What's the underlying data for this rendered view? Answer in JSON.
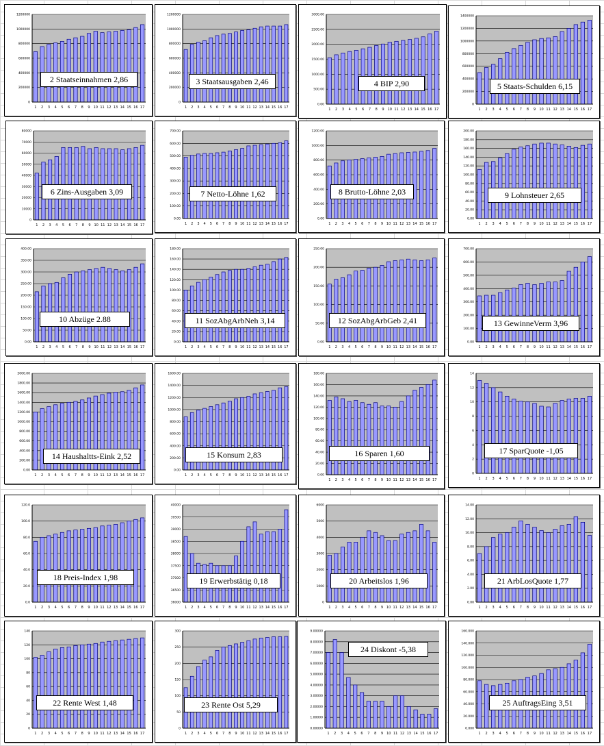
{
  "colors": {
    "plot_area": "#c0c0c0",
    "bar_fill": "#9999ff",
    "bar_stroke": "#000080",
    "grid": "#000000"
  },
  "chart_data": [
    {
      "type": "bar",
      "title": "2  Staatseinnahmen 2,86",
      "categories": [
        "1",
        "2",
        "3",
        "4",
        "5",
        "6",
        "7",
        "8",
        "9",
        "10",
        "11",
        "12",
        "13",
        "14",
        "15",
        "16",
        "17"
      ],
      "values": [
        690000,
        760000,
        790000,
        810000,
        830000,
        860000,
        880000,
        900000,
        940000,
        970000,
        950000,
        960000,
        970000,
        980000,
        990000,
        1020000,
        1060000
      ],
      "ylim": [
        0,
        1200000
      ],
      "yticks": [
        "0",
        "200000",
        "400000",
        "600000",
        "800000",
        "1000000",
        "1200000"
      ]
    },
    {
      "type": "bar",
      "title": "3 Staatsausgaben 2,46",
      "categories": [
        "1",
        "2",
        "3",
        "4",
        "5",
        "6",
        "7",
        "8",
        "9",
        "10",
        "11",
        "12",
        "13",
        "14",
        "15",
        "16",
        "17"
      ],
      "values": [
        720000,
        790000,
        820000,
        840000,
        880000,
        910000,
        930000,
        940000,
        960000,
        980000,
        990000,
        1010000,
        1030000,
        1040000,
        1040000,
        1040000,
        1060000
      ],
      "ylim": [
        0,
        1200000
      ],
      "yticks": [
        "0",
        "200000",
        "400000",
        "600000",
        "800000",
        "1000000",
        "1200000"
      ]
    },
    {
      "type": "bar",
      "title": "4  BIP 2,90",
      "categories": [
        "1",
        "2",
        "3",
        "4",
        "5",
        "6",
        "7",
        "8",
        "9",
        "10",
        "11",
        "12",
        "13",
        "14",
        "15",
        "16",
        "17"
      ],
      "values": [
        1550,
        1650,
        1710,
        1760,
        1800,
        1850,
        1900,
        1960,
        2010,
        2070,
        2100,
        2130,
        2160,
        2200,
        2250,
        2350,
        2440
      ],
      "ylim": [
        0,
        3000
      ],
      "yticks": [
        "0.00",
        "500.00",
        "1000.00",
        "1500.00",
        "2000.00",
        "2500.00",
        "3000.00"
      ]
    },
    {
      "type": "bar",
      "title": "5  Staats-Schulden 6,15",
      "categories": [
        "1",
        "2",
        "3",
        "4",
        "5",
        "6",
        "7",
        "8",
        "9",
        "10",
        "11",
        "12",
        "13",
        "14",
        "15",
        "16",
        "17"
      ],
      "values": [
        500000,
        580000,
        630000,
        720000,
        820000,
        880000,
        930000,
        980000,
        1020000,
        1040000,
        1050000,
        1070000,
        1150000,
        1200000,
        1260000,
        1300000,
        1330000
      ],
      "ylim": [
        0,
        1400000
      ],
      "yticks": [
        "0",
        "200000",
        "400000",
        "600000",
        "800000",
        "1000000",
        "1200000",
        "1400000"
      ]
    },
    {
      "type": "bar",
      "title": "6 Zins-Ausgaben 3,09",
      "categories": [
        "1",
        "2",
        "3",
        "4",
        "5",
        "6",
        "7",
        "8",
        "9",
        "10",
        "11",
        "12",
        "13",
        "14",
        "15",
        "16",
        "17"
      ],
      "values": [
        42000,
        52000,
        54000,
        57000,
        65000,
        65000,
        65000,
        66000,
        64000,
        65000,
        64000,
        64000,
        64000,
        63000,
        64000,
        65000,
        67000
      ],
      "ylim": [
        0,
        80000
      ],
      "yticks": [
        "0",
        "10000",
        "20000",
        "30000",
        "40000",
        "50000",
        "60000",
        "70000",
        "80000"
      ]
    },
    {
      "type": "bar",
      "title": "7 Netto-Löhne 1,62",
      "categories": [
        "1",
        "2",
        "3",
        "4",
        "5",
        "6",
        "7",
        "8",
        "9",
        "10",
        "11",
        "12",
        "13",
        "14",
        "15",
        "16",
        "17"
      ],
      "values": [
        490,
        505,
        515,
        520,
        520,
        525,
        530,
        540,
        550,
        560,
        580,
        585,
        590,
        595,
        600,
        605,
        620
      ],
      "ylim": [
        0,
        700
      ],
      "yticks": [
        "0.00",
        "100.00",
        "200.00",
        "300.00",
        "400.00",
        "500.00",
        "600.00",
        "700.00"
      ]
    },
    {
      "type": "bar",
      "title": "8  Brutto-Löhne 2,03",
      "categories": [
        "1",
        "2",
        "3",
        "4",
        "5",
        "6",
        "7",
        "8",
        "9",
        "10",
        "11",
        "12",
        "13",
        "14",
        "15",
        "16",
        "17"
      ],
      "values": [
        720,
        760,
        790,
        800,
        810,
        820,
        830,
        840,
        850,
        880,
        890,
        900,
        905,
        910,
        920,
        930,
        960
      ],
      "ylim": [
        0,
        1200
      ],
      "yticks": [
        "0.00",
        "200.00",
        "400.00",
        "600.00",
        "800.00",
        "1000.00",
        "1200.00"
      ]
    },
    {
      "type": "bar",
      "title": "9  Lohnsteuer 2,65",
      "categories": [
        "1",
        "2",
        "3",
        "4",
        "5",
        "6",
        "7",
        "8",
        "9",
        "10",
        "11",
        "12",
        "13",
        "14",
        "15",
        "16",
        "17"
      ],
      "values": [
        112,
        128,
        130,
        138,
        148,
        158,
        163,
        166,
        170,
        172,
        172,
        170,
        168,
        165,
        162,
        167,
        170
      ],
      "ylim": [
        0,
        200
      ],
      "yticks": [
        "0.00",
        "20.00",
        "40.00",
        "60.00",
        "80.00",
        "100.00",
        "120.00",
        "140.00",
        "160.00",
        "180.00",
        "200.00"
      ]
    },
    {
      "type": "bar",
      "title": "10  Abzüge   2.88",
      "categories": [
        "1",
        "2",
        "3",
        "4",
        "5",
        "6",
        "7",
        "8",
        "9",
        "10",
        "11",
        "12",
        "13",
        "14",
        "15",
        "16",
        "17"
      ],
      "values": [
        215,
        240,
        250,
        255,
        275,
        290,
        300,
        305,
        310,
        315,
        320,
        315,
        310,
        305,
        310,
        320,
        335
      ],
      "ylim": [
        0,
        400
      ],
      "yticks": [
        "0.00",
        "50.00",
        "100.00",
        "150.00",
        "200.00",
        "250.00",
        "300.00",
        "350.00",
        "400.00"
      ]
    },
    {
      "type": "bar",
      "title": "11 SozAbgArbNeh 3,14",
      "categories": [
        "1",
        "2",
        "3",
        "4",
        "5",
        "6",
        "7",
        "8",
        "9",
        "10",
        "11",
        "12",
        "13",
        "14",
        "15",
        "16",
        "17"
      ],
      "values": [
        100,
        108,
        115,
        120,
        125,
        130,
        135,
        138,
        140,
        140,
        142,
        145,
        148,
        150,
        155,
        160,
        163
      ],
      "ylim": [
        0,
        180
      ],
      "yticks": [
        "0.00",
        "20.00",
        "40.00",
        "60.00",
        "80.00",
        "100.00",
        "120.00",
        "140.00",
        "160.00",
        "180.00"
      ]
    },
    {
      "type": "bar",
      "title": "12 SozAbgArbGeb 2,41",
      "categories": [
        "1",
        "2",
        "3",
        "4",
        "5",
        "6",
        "7",
        "8",
        "9",
        "10",
        "11",
        "12",
        "13",
        "14",
        "15",
        "16",
        "17"
      ],
      "values": [
        155,
        168,
        172,
        180,
        190,
        192,
        198,
        200,
        205,
        215,
        218,
        220,
        222,
        220,
        218,
        220,
        225
      ],
      "ylim": [
        0,
        250
      ],
      "yticks": [
        "0.00",
        "50.00",
        "100.00",
        "150.00",
        "200.00",
        "250.00"
      ]
    },
    {
      "type": "bar",
      "title": "13 GewinneVerm 3,96",
      "categories": [
        "1",
        "2",
        "3",
        "4",
        "5",
        "6",
        "7",
        "8",
        "9",
        "10",
        "11",
        "12",
        "13",
        "14",
        "15",
        "16",
        "17"
      ],
      "values": [
        345,
        350,
        350,
        370,
        390,
        405,
        430,
        440,
        430,
        440,
        450,
        450,
        460,
        530,
        560,
        600,
        640
      ],
      "ylim": [
        0,
        700
      ],
      "yticks": [
        "0.00",
        "100.00",
        "200.00",
        "300.00",
        "400.00",
        "500.00",
        "600.00",
        "700.00"
      ]
    },
    {
      "type": "bar",
      "title": "14 Haushaltts-Eink 2,52",
      "categories": [
        "1",
        "2",
        "3",
        "4",
        "5",
        "6",
        "7",
        "8",
        "9",
        "10",
        "11",
        "12",
        "13",
        "14",
        "15",
        "16",
        "17"
      ],
      "values": [
        1200,
        1270,
        1310,
        1350,
        1380,
        1400,
        1420,
        1450,
        1490,
        1530,
        1560,
        1590,
        1610,
        1620,
        1650,
        1700,
        1760
      ],
      "ylim": [
        0,
        2000
      ],
      "yticks": [
        "0.00",
        "200.00",
        "400.00",
        "600.00",
        "800.00",
        "1000.00",
        "1200.00",
        "1400.00",
        "1600.00",
        "1800.00",
        "2000.00"
      ]
    },
    {
      "type": "bar",
      "title": "15 Konsum 2,83",
      "categories": [
        "1",
        "2",
        "3",
        "4",
        "5",
        "6",
        "7",
        "8",
        "9",
        "10",
        "11",
        "12",
        "13",
        "14",
        "15",
        "16",
        "17"
      ],
      "values": [
        880,
        950,
        990,
        1020,
        1050,
        1080,
        1110,
        1140,
        1180,
        1200,
        1220,
        1260,
        1280,
        1300,
        1320,
        1360,
        1380
      ],
      "ylim": [
        0,
        1600
      ],
      "yticks": [
        "0.00",
        "200.00",
        "400.00",
        "600.00",
        "800.00",
        "1000.00",
        "1200.00",
        "1400.00",
        "1600.00"
      ]
    },
    {
      "type": "bar",
      "title": "16  Sparen  1,60",
      "categories": [
        "1",
        "2",
        "3",
        "4",
        "5",
        "6",
        "7",
        "8",
        "9",
        "10",
        "11",
        "12",
        "13",
        "14",
        "15",
        "16",
        "17"
      ],
      "values": [
        132,
        138,
        135,
        130,
        132,
        128,
        125,
        128,
        122,
        122,
        120,
        130,
        140,
        150,
        155,
        160,
        168
      ],
      "ylim": [
        0,
        180
      ],
      "yticks": [
        "0.00",
        "20.00",
        "40.00",
        "60.00",
        "80.00",
        "100.00",
        "120.00",
        "140.00",
        "160.00",
        "180.00"
      ]
    },
    {
      "type": "bar",
      "title": "17  SparQuote -1,05",
      "categories": [
        "1",
        "2",
        "3",
        "4",
        "5",
        "6",
        "7",
        "8",
        "9",
        "10",
        "11",
        "12",
        "13",
        "14",
        "15",
        "16",
        "17"
      ],
      "values": [
        13,
        12.6,
        12,
        11.4,
        10.8,
        10.4,
        10.1,
        10,
        9.8,
        9.4,
        9.3,
        9.8,
        10.2,
        10.4,
        10.5,
        10.5,
        10.8
      ],
      "ylim": [
        0,
        14
      ],
      "yticks": [
        "0",
        "2",
        "4",
        "6",
        "8",
        "10",
        "12",
        "14"
      ]
    },
    {
      "type": "bar",
      "title": "18  Preis-Index 1,98",
      "categories": [
        "1",
        "2",
        "3",
        "4",
        "5",
        "6",
        "7",
        "8",
        "9",
        "10",
        "11",
        "12",
        "13",
        "14",
        "15",
        "16",
        "17"
      ],
      "values": [
        75,
        80,
        82,
        84,
        86,
        88,
        89,
        90,
        91,
        92,
        94,
        95,
        96,
        98,
        100,
        102,
        104
      ],
      "ylim": [
        0,
        120
      ],
      "yticks": [
        "0.0",
        "20.0",
        "40.0",
        "60.0",
        "80.0",
        "100.0",
        "120.0"
      ]
    },
    {
      "type": "bar",
      "title": "19  Erwerbstätig 0,18",
      "categories": [
        "1",
        "2",
        "3",
        "4",
        "5",
        "6",
        "7",
        "8",
        "9",
        "10",
        "11",
        "12",
        "13",
        "14",
        "15",
        "16",
        "17"
      ],
      "values": [
        38700,
        38000,
        37600,
        37550,
        37600,
        37500,
        37500,
        37500,
        37900,
        38500,
        39100,
        39300,
        38800,
        38900,
        38900,
        39000,
        39800
      ],
      "ylim": [
        36000,
        40000
      ],
      "yticks": [
        "36000",
        "36500",
        "37000",
        "37500",
        "38000",
        "38500",
        "39000",
        "39500",
        "40000"
      ]
    },
    {
      "type": "bar",
      "title": "20  Arbeitslos 1,96",
      "categories": [
        "1",
        "2",
        "3",
        "4",
        "5",
        "6",
        "7",
        "8",
        "9",
        "10",
        "11",
        "12",
        "13",
        "14",
        "15",
        "16",
        "17"
      ],
      "values": [
        2900,
        3000,
        3400,
        3700,
        3700,
        4000,
        4400,
        4300,
        4100,
        3800,
        3800,
        4200,
        4300,
        4400,
        4800,
        4400,
        3700
      ],
      "ylim": [
        0,
        6000
      ],
      "yticks": [
        "0",
        "1000",
        "2000",
        "3000",
        "4000",
        "5000",
        "6000"
      ]
    },
    {
      "type": "bar",
      "title": "21 ArbLosQuote 1,77",
      "categories": [
        "1",
        "2",
        "3",
        "4",
        "5",
        "6",
        "7",
        "8",
        "9",
        "10",
        "11",
        "12",
        "13",
        "14",
        "15",
        "16",
        "17"
      ],
      "values": [
        7,
        8,
        9.3,
        9.8,
        10,
        10.8,
        11.7,
        11.2,
        10.8,
        10.3,
        10,
        10.5,
        11,
        11.2,
        12.3,
        11.5,
        9.6
      ],
      "ylim": [
        0,
        14
      ],
      "yticks": [
        "0.00",
        "2.00",
        "4.00",
        "6.00",
        "8.00",
        "10.00",
        "12.00",
        "14.00"
      ]
    },
    {
      "type": "bar",
      "title": "22  Rente West 1,48",
      "categories": [
        "1",
        "2",
        "3",
        "4",
        "5",
        "6",
        "7",
        "8",
        "9",
        "10",
        "11",
        "12",
        "13",
        "14",
        "15",
        "16",
        "17"
      ],
      "values": [
        102,
        105,
        110,
        114,
        116,
        117,
        119,
        120,
        121,
        122,
        124,
        125,
        126,
        127,
        128,
        129,
        130
      ],
      "ylim": [
        0,
        140
      ],
      "yticks": [
        "0",
        "20",
        "40",
        "60",
        "80",
        "100",
        "120",
        "140"
      ]
    },
    {
      "type": "bar",
      "title": "23  Rente Ost 5,29",
      "categories": [
        "1",
        "2",
        "3",
        "4",
        "5",
        "6",
        "7",
        "8",
        "9",
        "10",
        "11",
        "12",
        "13",
        "14",
        "15",
        "16",
        "17"
      ],
      "values": [
        125,
        160,
        190,
        210,
        220,
        240,
        250,
        255,
        260,
        265,
        270,
        275,
        278,
        280,
        282,
        282,
        283
      ],
      "ylim": [
        0,
        300
      ],
      "yticks": [
        "0",
        "50",
        "100",
        "150",
        "200",
        "250",
        "300"
      ]
    },
    {
      "type": "bar",
      "title": "24  Diskont  -5,38",
      "categories": [
        "1",
        "2",
        "3",
        "4",
        "5",
        "6",
        "7",
        "8",
        "9",
        "10",
        "11",
        "12",
        "13",
        "14",
        "15",
        "16",
        "17"
      ],
      "values": [
        7,
        8.2,
        7,
        4.7,
        4,
        3.3,
        2.5,
        2.5,
        2.5,
        2,
        3,
        3,
        2,
        1.7,
        1.3,
        1.3,
        1.8
      ],
      "ylim": [
        0,
        9
      ],
      "yticks": [
        "0.00000",
        "1.00000",
        "2.00000",
        "3.00000",
        "4.00000",
        "5.00000",
        "6.00000",
        "7.00000",
        "8.00000",
        "9.00000"
      ]
    },
    {
      "type": "bar",
      "title": "25 AuftragsEing   3,51",
      "categories": [
        "1",
        "2",
        "3",
        "4",
        "5",
        "6",
        "7",
        "8",
        "9",
        "10",
        "11",
        "12",
        "13",
        "14",
        "15",
        "16",
        "17"
      ],
      "values": [
        78,
        72,
        70,
        72,
        74,
        78,
        80,
        84,
        86,
        90,
        96,
        98,
        100,
        106,
        112,
        124,
        138
      ],
      "ylim": [
        0,
        160
      ],
      "yticks": [
        "0.000",
        "20.000",
        "40.000",
        "60.000",
        "80.000",
        "100.000",
        "120.000",
        "140.000",
        "160.000"
      ]
    }
  ]
}
